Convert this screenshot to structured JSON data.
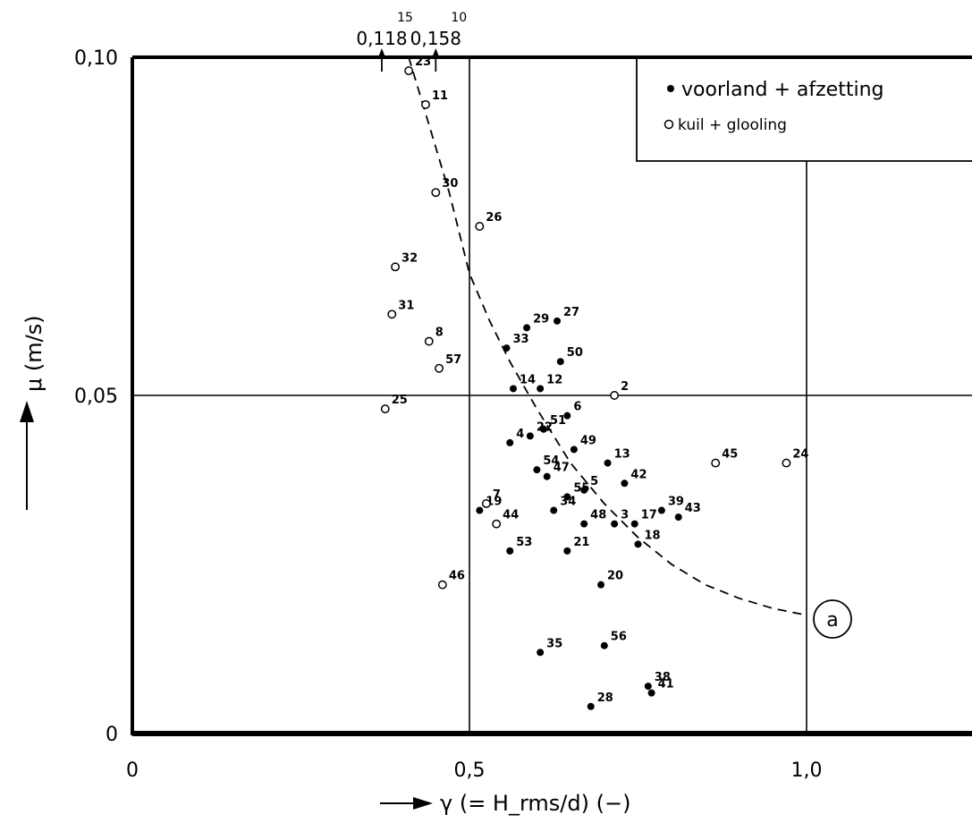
{
  "chart_data": {
    "type": "scatter",
    "xlabel": "γ (= H_rms/d) (−)",
    "ylabel": "μ (m/s)",
    "xlim": [
      0,
      1.25
    ],
    "ylim": [
      0,
      0.1
    ],
    "x_ticks": [
      {
        "value": 0,
        "label": "0"
      },
      {
        "value": 0.5,
        "label": "0,5"
      },
      {
        "value": 1.0,
        "label": "1,0"
      }
    ],
    "y_ticks": [
      {
        "value": 0,
        "label": "0"
      },
      {
        "value": 0.05,
        "label": "0,05"
      },
      {
        "value": 0.1,
        "label": "0,10"
      }
    ],
    "grid": "x=0.5, x=1.0, y=0.05 only",
    "legend_position": "top-right",
    "series": [
      {
        "name": "voorland + afzetting",
        "marker": "filled",
        "points": [
          {
            "label": "27",
            "x": 0.63,
            "y": 0.061
          },
          {
            "label": "29",
            "x": 0.585,
            "y": 0.06
          },
          {
            "label": "33",
            "x": 0.555,
            "y": 0.057
          },
          {
            "label": "50",
            "x": 0.635,
            "y": 0.055
          },
          {
            "label": "14",
            "x": 0.565,
            "y": 0.051
          },
          {
            "label": "12",
            "x": 0.605,
            "y": 0.051
          },
          {
            "label": "51",
            "x": 0.61,
            "y": 0.045
          },
          {
            "label": "6",
            "x": 0.645,
            "y": 0.047
          },
          {
            "label": "22",
            "x": 0.59,
            "y": 0.044
          },
          {
            "label": "4",
            "x": 0.56,
            "y": 0.043
          },
          {
            "label": "49",
            "x": 0.655,
            "y": 0.042
          },
          {
            "label": "54",
            "x": 0.6,
            "y": 0.039
          },
          {
            "label": "47",
            "x": 0.615,
            "y": 0.038
          },
          {
            "label": "13",
            "x": 0.705,
            "y": 0.04
          },
          {
            "label": "55",
            "x": 0.645,
            "y": 0.035
          },
          {
            "label": "5",
            "x": 0.67,
            "y": 0.036
          },
          {
            "label": "42",
            "x": 0.73,
            "y": 0.037
          },
          {
            "label": "19",
            "x": 0.515,
            "y": 0.033
          },
          {
            "label": "34",
            "x": 0.625,
            "y": 0.033
          },
          {
            "label": "48",
            "x": 0.67,
            "y": 0.031
          },
          {
            "label": "3",
            "x": 0.715,
            "y": 0.031
          },
          {
            "label": "17",
            "x": 0.745,
            "y": 0.031
          },
          {
            "label": "39",
            "x": 0.785,
            "y": 0.033
          },
          {
            "label": "43",
            "x": 0.81,
            "y": 0.032
          },
          {
            "label": "18",
            "x": 0.75,
            "y": 0.028
          },
          {
            "label": "53",
            "x": 0.56,
            "y": 0.027
          },
          {
            "label": "21",
            "x": 0.645,
            "y": 0.027
          },
          {
            "label": "20",
            "x": 0.695,
            "y": 0.022
          },
          {
            "label": "35",
            "x": 0.605,
            "y": 0.012
          },
          {
            "label": "56",
            "x": 0.7,
            "y": 0.013
          },
          {
            "label": "38",
            "x": 0.765,
            "y": 0.007
          },
          {
            "label": "41",
            "x": 0.77,
            "y": 0.006
          },
          {
            "label": "28",
            "x": 0.68,
            "y": 0.004
          }
        ]
      },
      {
        "name": "kuil + glooling",
        "marker": "open",
        "points": [
          {
            "label": "23",
            "x": 0.41,
            "y": 0.098
          },
          {
            "label": "11",
            "x": 0.435,
            "y": 0.093
          },
          {
            "label": "30",
            "x": 0.45,
            "y": 0.08
          },
          {
            "label": "26",
            "x": 0.515,
            "y": 0.075
          },
          {
            "label": "32",
            "x": 0.39,
            "y": 0.069
          },
          {
            "label": "31",
            "x": 0.385,
            "y": 0.062
          },
          {
            "label": "8",
            "x": 0.44,
            "y": 0.058
          },
          {
            "label": "57",
            "x": 0.455,
            "y": 0.054
          },
          {
            "label": "2",
            "x": 0.715,
            "y": 0.05
          },
          {
            "label": "25",
            "x": 0.375,
            "y": 0.048
          },
          {
            "label": "45",
            "x": 0.865,
            "y": 0.04
          },
          {
            "label": "24",
            "x": 0.97,
            "y": 0.04
          },
          {
            "label": "7",
            "x": 0.525,
            "y": 0.034
          },
          {
            "label": "44",
            "x": 0.54,
            "y": 0.031
          },
          {
            "label": "46",
            "x": 0.46,
            "y": 0.022
          }
        ]
      }
    ],
    "curve": {
      "label": "a",
      "style": "dashed",
      "x": [
        0.41,
        0.44,
        0.47,
        0.5,
        0.53,
        0.56,
        0.6,
        0.65,
        0.7,
        0.75,
        0.8,
        0.85,
        0.9,
        0.95,
        1.0
      ],
      "y": [
        0.1,
        0.09,
        0.08,
        0.068,
        0.061,
        0.055,
        0.048,
        0.04,
        0.034,
        0.029,
        0.025,
        0.022,
        0.02,
        0.0185,
        0.0175
      ]
    },
    "off_scale": [
      {
        "label": "15",
        "value": "0,118",
        "x": 0.37
      },
      {
        "label": "10",
        "value": "0,158",
        "x": 0.45
      }
    ]
  }
}
